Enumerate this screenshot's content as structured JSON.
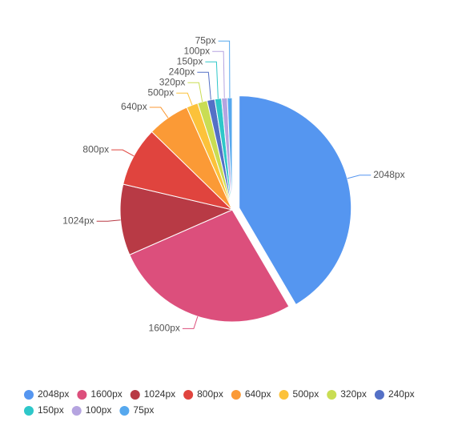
{
  "chart_data": {
    "type": "pie",
    "categories": [
      "2048px",
      "1600px",
      "1024px",
      "800px",
      "640px",
      "500px",
      "320px",
      "240px",
      "150px",
      "100px",
      "75px"
    ],
    "values": [
      150,
      97,
      37,
      31,
      22,
      6,
      5,
      4,
      3.5,
      3,
      2.5
    ],
    "colors": [
      "#5596f0",
      "#dc4f7c",
      "#b83a45",
      "#e0443e",
      "#fb9a36",
      "#fcc23a",
      "#c9dd53",
      "#5470c6",
      "#2ec7c9",
      "#b5a4e0",
      "#56a8ee"
    ],
    "legend": "bottom"
  }
}
